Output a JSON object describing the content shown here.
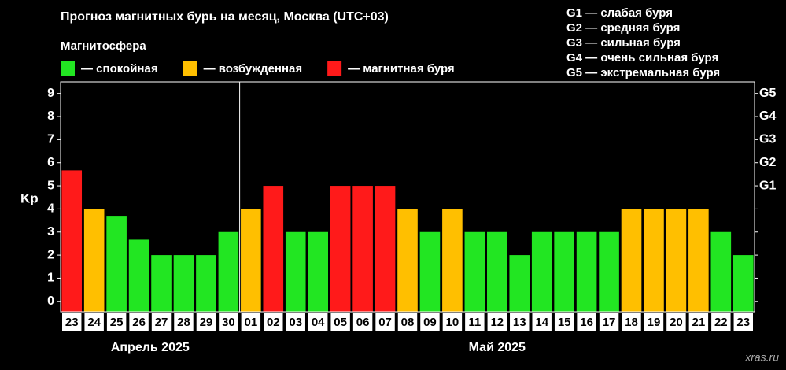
{
  "chart_data": {
    "type": "bar",
    "title": "Прогноз магнитных бурь на месяц, Москва (UTC+03)",
    "legend_title": "Магнитосфера",
    "legend": [
      {
        "name": "— спокойная",
        "color": "#22e622"
      },
      {
        "name": "— возбужденная",
        "color": "#ffbf00"
      },
      {
        "name": "— магнитная буря",
        "color": "#ff1a1a"
      }
    ],
    "scale_notes": [
      "G1 — слабая буря",
      "G2 — средняя буря",
      "G3 — сильная буря",
      "G4 — очень сильная буря",
      "G5 — экстремальная буря"
    ],
    "ylabel": "Kp",
    "categories": [
      "23",
      "24",
      "25",
      "26",
      "27",
      "28",
      "29",
      "30",
      "01",
      "02",
      "03",
      "04",
      "05",
      "06",
      "07",
      "08",
      "09",
      "10",
      "11",
      "12",
      "13",
      "14",
      "15",
      "16",
      "17",
      "18",
      "19",
      "20",
      "21",
      "22",
      "23"
    ],
    "months": [
      "Апрель 2025",
      "Май 2025"
    ],
    "values": [
      5.67,
      4,
      3.67,
      2.67,
      2,
      2,
      2,
      3,
      4,
      5,
      3,
      3,
      5,
      5,
      5,
      4,
      3,
      4,
      3,
      3,
      2,
      3,
      3,
      3,
      3,
      4,
      4,
      4,
      4,
      3,
      2
    ],
    "colors": [
      "#ff1a1a",
      "#ffbf00",
      "#22e622",
      "#22e622",
      "#22e622",
      "#22e622",
      "#22e622",
      "#22e622",
      "#ffbf00",
      "#ff1a1a",
      "#22e622",
      "#22e622",
      "#ff1a1a",
      "#ff1a1a",
      "#ff1a1a",
      "#ffbf00",
      "#22e622",
      "#ffbf00",
      "#22e622",
      "#22e622",
      "#22e622",
      "#22e622",
      "#22e622",
      "#22e622",
      "#22e622",
      "#ffbf00",
      "#ffbf00",
      "#ffbf00",
      "#ffbf00",
      "#22e622",
      "#22e622"
    ],
    "ylim": [
      -0.45,
      9.5
    ],
    "yticks": [
      0,
      1,
      2,
      3,
      4,
      5,
      6,
      7,
      8,
      9
    ],
    "y2ticks": [
      {
        "value": 5,
        "label": "G1"
      },
      {
        "value": 6,
        "label": "G2"
      },
      {
        "value": 7,
        "label": "G3"
      },
      {
        "value": 8,
        "label": "G4"
      },
      {
        "value": 9,
        "label": "G5"
      }
    ],
    "watermark": "xras.ru"
  }
}
